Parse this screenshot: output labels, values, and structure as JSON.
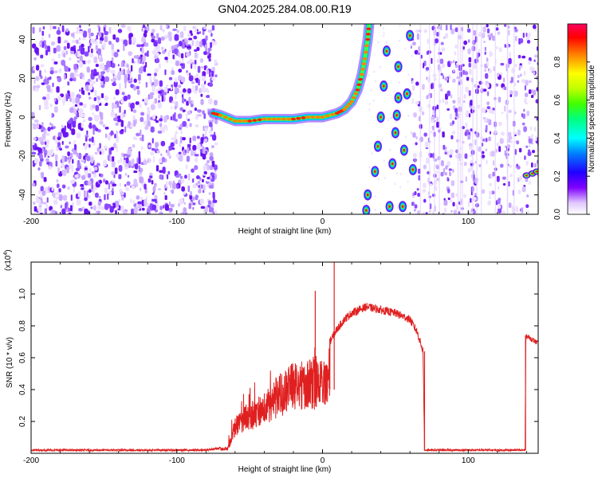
{
  "title": "GN04.2025.284.08.00.R19",
  "chart_data": [
    {
      "type": "heatmap",
      "name": "spectrogram",
      "xlabel": "Height of straight line (km)",
      "ylabel": "Frequency (Hz)",
      "xlim": [
        -200,
        148
      ],
      "ylim": [
        -50,
        48
      ],
      "x_ticks": [
        -200,
        -100,
        0,
        100
      ],
      "y_ticks": [
        -40,
        -20,
        0,
        20,
        40
      ],
      "colorbar": {
        "label": "Normalized spectral amplitude",
        "range": [
          0.0,
          1.0
        ],
        "ticks": [
          0.0,
          0.2,
          0.4,
          0.6,
          0.8
        ],
        "tick_labels": [
          "0.0",
          "0.2",
          "0.4",
          "0.6",
          "0.8"
        ],
        "colors": [
          "#ffffff",
          "#c8a0ff",
          "#8000ff",
          "#2000ff",
          "#0080ff",
          "#00ffff",
          "#00ff80",
          "#40ff00",
          "#c0ff00",
          "#ffff00",
          "#ff8000",
          "#ff0000",
          "#ff0060"
        ]
      },
      "tone_trace": [
        {
          "x": -75,
          "y": 2
        },
        {
          "x": -70,
          "y": 1
        },
        {
          "x": -60,
          "y": -2
        },
        {
          "x": -50,
          "y": -2
        },
        {
          "x": -40,
          "y": -1
        },
        {
          "x": -30,
          "y": -1
        },
        {
          "x": -20,
          "y": -1
        },
        {
          "x": -10,
          "y": 0
        },
        {
          "x": 0,
          "y": 0
        },
        {
          "x": 10,
          "y": 2
        },
        {
          "x": 15,
          "y": 4
        },
        {
          "x": 20,
          "y": 8
        },
        {
          "x": 24,
          "y": 14
        },
        {
          "x": 27,
          "y": 22
        },
        {
          "x": 29,
          "y": 30
        },
        {
          "x": 31,
          "y": 40
        },
        {
          "x": 32,
          "y": 48
        }
      ],
      "alias_points": [
        {
          "x": 30,
          "y": -48
        },
        {
          "x": 31,
          "y": -40
        },
        {
          "x": 36,
          "y": -28
        },
        {
          "x": 38,
          "y": -15
        },
        {
          "x": 40,
          "y": 0
        },
        {
          "x": 42,
          "y": 16
        },
        {
          "x": 44,
          "y": 34
        },
        {
          "x": 46,
          "y": -46
        },
        {
          "x": 48,
          "y": -24
        },
        {
          "x": 50,
          "y": -8
        },
        {
          "x": 51,
          "y": 1
        },
        {
          "x": 52,
          "y": 10
        },
        {
          "x": 52,
          "y": 26
        },
        {
          "x": 55,
          "y": -46
        },
        {
          "x": 56,
          "y": -17
        },
        {
          "x": 58,
          "y": 12
        },
        {
          "x": 60,
          "y": 42
        },
        {
          "x": 62,
          "y": -27
        }
      ]
    },
    {
      "type": "line",
      "name": "snr",
      "xlabel": "Height of straight line (km)",
      "ylabel": "SNR (10 * v/v)",
      "y_multiplier": "(x10",
      "y_multiplier_exponent": "4",
      "y_multiplier_close": ")",
      "xlim": [
        -200,
        148
      ],
      "ylim": [
        0.0,
        1.2
      ],
      "x_ticks": [
        -200,
        -100,
        0,
        100
      ],
      "y_ticks": [
        0.2,
        0.4,
        0.6,
        0.8,
        1.0
      ],
      "y_tick_labels": [
        "0.2",
        "0.4",
        "0.6",
        "0.8",
        "1.0"
      ],
      "line_color": "#e02020",
      "series_envelope": [
        {
          "x": -200,
          "y": 0.02
        },
        {
          "x": -80,
          "y": 0.02
        },
        {
          "x": -65,
          "y": 0.04
        },
        {
          "x": -60,
          "y": 0.22
        },
        {
          "x": -55,
          "y": 0.28
        },
        {
          "x": -50,
          "y": 0.32
        },
        {
          "x": -40,
          "y": 0.38
        },
        {
          "x": -30,
          "y": 0.5
        },
        {
          "x": -20,
          "y": 0.58
        },
        {
          "x": -10,
          "y": 0.6
        },
        {
          "x": 0,
          "y": 0.62
        },
        {
          "x": 5,
          "y": 0.7
        },
        {
          "x": 10,
          "y": 0.78
        },
        {
          "x": 15,
          "y": 0.84
        },
        {
          "x": 20,
          "y": 0.88
        },
        {
          "x": 30,
          "y": 0.92
        },
        {
          "x": 40,
          "y": 0.9
        },
        {
          "x": 50,
          "y": 0.88
        },
        {
          "x": 60,
          "y": 0.84
        },
        {
          "x": 65,
          "y": 0.76
        },
        {
          "x": 69,
          "y": 0.64
        },
        {
          "x": 70,
          "y": 0.02
        },
        {
          "x": 100,
          "y": 0.02
        },
        {
          "x": 139,
          "y": 0.02
        },
        {
          "x": 139.5,
          "y": 0.74
        },
        {
          "x": 148,
          "y": 0.69
        }
      ],
      "spikes": [
        {
          "x": -5,
          "y": 1.02
        },
        {
          "x": 8,
          "y": 1.2
        },
        {
          "x": 5,
          "y": 0.72
        }
      ]
    }
  ]
}
